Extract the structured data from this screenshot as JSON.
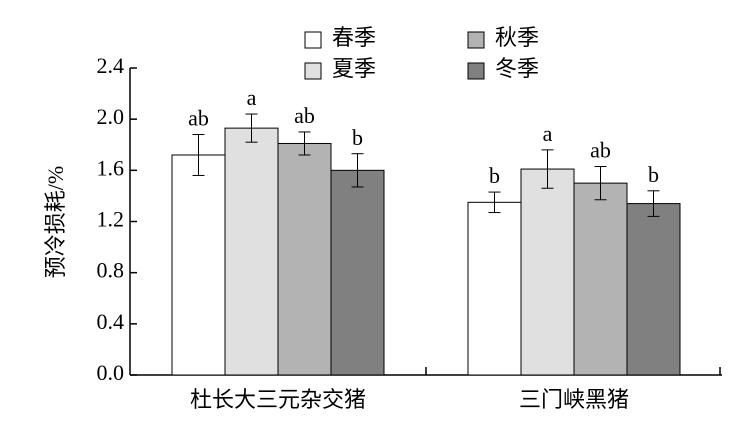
{
  "chart_data": {
    "type": "bar",
    "ylabel": "预冷损耗/%",
    "categories": [
      "杜长大三元杂交猪",
      "三门峡黑猪"
    ],
    "series": [
      {
        "name": "春季",
        "color": "#ffffff",
        "values": [
          1.72,
          1.35
        ],
        "errors": [
          0.16,
          0.08
        ],
        "significance": [
          "ab",
          "b"
        ]
      },
      {
        "name": "夏季",
        "color": "#e0e0e0",
        "values": [
          1.93,
          1.61
        ],
        "errors": [
          0.11,
          0.15
        ],
        "significance": [
          "a",
          "a"
        ]
      },
      {
        "name": "秋季",
        "color": "#b3b3b3",
        "values": [
          1.81,
          1.5
        ],
        "errors": [
          0.09,
          0.13
        ],
        "significance": [
          "ab",
          "ab"
        ]
      },
      {
        "name": "冬季",
        "color": "#808080",
        "values": [
          1.6,
          1.34
        ],
        "errors": [
          0.13,
          0.1
        ],
        "significance": [
          "b",
          "b"
        ]
      }
    ],
    "ylim": [
      0,
      2.4
    ],
    "yticks": [
      {
        "value": 0,
        "label": "0.0"
      },
      {
        "value": 0.4,
        "label": "0.4"
      },
      {
        "value": 0.8,
        "label": "0.8"
      },
      {
        "value": 1.2,
        "label": "1.2"
      },
      {
        "value": 1.6,
        "label": "1.6"
      },
      {
        "value": 2.0,
        "label": "2.0"
      },
      {
        "value": 2.4,
        "label": "2.4"
      }
    ],
    "legend": "top"
  }
}
